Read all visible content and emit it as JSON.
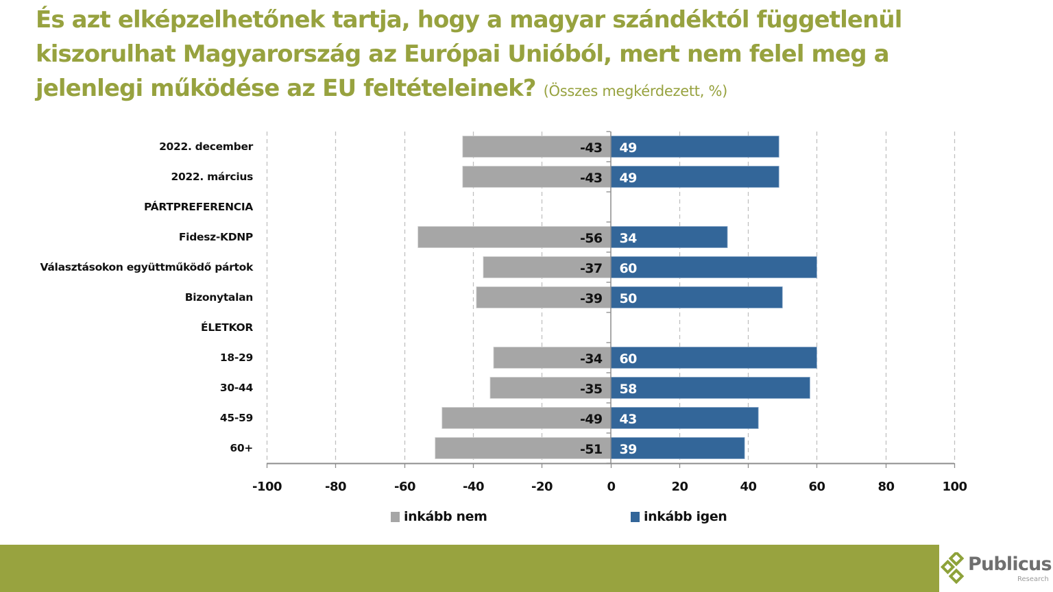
{
  "title": {
    "main": "És azt elképzelhetőnek tartja, hogy a magyar szándéktól függetlenül kiszorulhat  Magyarország az Európai Unióból, mert nem felel meg a jelenlegi működése az EU feltételeinek?",
    "line1": "És azt elképzelhetőnek tartja, hogy a magyar szándéktól függetlenül",
    "line2": "kiszorulhat  Magyarország az Európai Unióból, mert nem felel meg a",
    "line3": "jelenlegi működése az EU feltételeinek?",
    "subtitle": "(Összes megkérdezett, %)"
  },
  "chart_data": {
    "type": "bar",
    "orientation": "horizontal",
    "stacked": "diverging",
    "title": "És azt elképzelhetőnek tartja, hogy a magyar szándéktól függetlenül kiszorulhat  Magyarország az Európai Unióból, mert nem felel meg a jelenlegi működése az EU feltételeinek?",
    "subtitle": "(Összes megkérdezett, %)",
    "xlabel": "",
    "ylabel": "",
    "xlim": [
      -100,
      100
    ],
    "xticks": [
      -100,
      -80,
      -60,
      -40,
      -20,
      0,
      20,
      40,
      60,
      80,
      100
    ],
    "xtick_labels": [
      "-100",
      "-80",
      "-60",
      "-40",
      "-20",
      "0",
      "20",
      "40",
      "60",
      "80",
      "100"
    ],
    "grid": "vertical dashed",
    "categories": [
      "2022. december",
      "2022. március",
      "PÁRTPREFERENCIA",
      "Fidesz-KDNP",
      "Választásokon együttműködő pártok",
      "Bizonytalan",
      "ÉLETKOR",
      "18-29",
      "30-44",
      "45-59",
      "60+"
    ],
    "series": [
      {
        "name": "inkább nem",
        "color": "#a6a6a6",
        "values": [
          -43,
          -43,
          null,
          -56,
          -37,
          -39,
          null,
          -34,
          -35,
          -49,
          -51
        ]
      },
      {
        "name": "inkább igen",
        "color": "#336699",
        "values": [
          49,
          49,
          null,
          34,
          60,
          50,
          null,
          60,
          58,
          43,
          39
        ]
      }
    ],
    "legend": {
      "position": "bottom",
      "entries": [
        "inkább nem",
        "inkább igen"
      ]
    }
  },
  "colors": {
    "title": "#97a23f",
    "footer": "#98a33f",
    "negative": "#a6a6a6",
    "positive": "#336699"
  },
  "logo": {
    "name": "Publicus",
    "sub": "Research"
  }
}
